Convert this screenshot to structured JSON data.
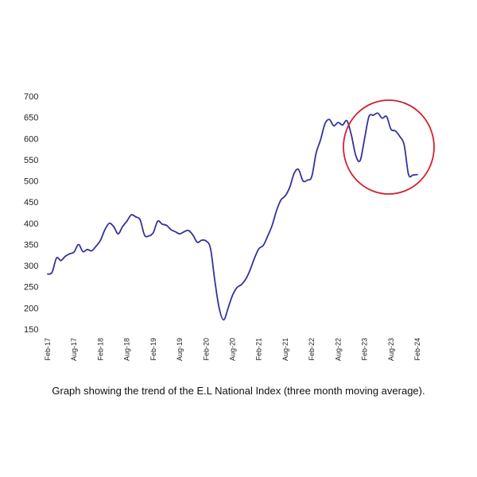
{
  "chart_data": {
    "type": "line",
    "title": "",
    "xlabel": "",
    "ylabel": "",
    "ylim": [
      150,
      700
    ],
    "yticks": [
      150,
      200,
      250,
      300,
      350,
      400,
      450,
      500,
      550,
      600,
      650,
      700
    ],
    "xticks": [
      "Feb-17",
      "Aug-17",
      "Feb-18",
      "Aug-18",
      "Feb-19",
      "Aug-19",
      "Feb-20",
      "Aug-20",
      "Feb-21",
      "Aug-21",
      "Feb-22",
      "Aug-22",
      "Feb-23",
      "Aug-23",
      "Feb-24"
    ],
    "grid": false,
    "line_color": "#33339a",
    "highlight_color": "#d42030",
    "series": [
      {
        "x": [
          "Feb-17",
          "Mar-17",
          "Apr-17",
          "May-17",
          "Jun-17",
          "Jul-17",
          "Aug-17",
          "Sep-17",
          "Oct-17",
          "Nov-17",
          "Dec-17",
          "Jan-18",
          "Feb-18",
          "Mar-18",
          "Apr-18",
          "May-18",
          "Jun-18",
          "Jul-18",
          "Aug-18",
          "Sep-18",
          "Oct-18",
          "Nov-18",
          "Dec-18",
          "Jan-19",
          "Feb-19",
          "Mar-19",
          "Apr-19",
          "May-19",
          "Jun-19",
          "Jul-19",
          "Aug-19",
          "Sep-19",
          "Oct-19",
          "Nov-19",
          "Dec-19",
          "Jan-20",
          "Feb-20",
          "Mar-20",
          "Apr-20",
          "May-20",
          "Jun-20",
          "Jul-20",
          "Aug-20",
          "Sep-20",
          "Oct-20",
          "Nov-20",
          "Dec-20",
          "Jan-21",
          "Feb-21",
          "Mar-21",
          "Apr-21",
          "May-21",
          "Jun-21",
          "Jul-21",
          "Aug-21",
          "Sep-21",
          "Oct-21",
          "Nov-21",
          "Dec-21",
          "Jan-22",
          "Feb-22",
          "Mar-22",
          "Apr-22",
          "May-22",
          "Jun-22",
          "Jul-22",
          "Aug-22",
          "Sep-22",
          "Oct-22",
          "Nov-22",
          "Dec-22",
          "Jan-23",
          "Feb-23",
          "Mar-23",
          "Apr-23",
          "May-23",
          "Jun-23",
          "Jul-23",
          "Aug-23",
          "Sep-23",
          "Oct-23",
          "Nov-23",
          "Dec-23",
          "Jan-24",
          "Feb-24"
        ],
        "values": [
          280,
          284,
          318,
          312,
          322,
          328,
          332,
          350,
          333,
          338,
          335,
          346,
          360,
          385,
          400,
          392,
          375,
          392,
          405,
          420,
          415,
          408,
          372,
          370,
          378,
          405,
          398,
          395,
          385,
          380,
          375,
          380,
          383,
          372,
          355,
          360,
          358,
          340,
          262,
          198,
          172,
          200,
          230,
          248,
          255,
          268,
          290,
          318,
          340,
          348,
          370,
          395,
          430,
          455,
          465,
          485,
          518,
          527,
          500,
          502,
          510,
          566,
          597,
          635,
          645,
          630,
          638,
          632,
          642,
          608,
          560,
          548,
          600,
          652,
          655,
          660,
          648,
          652,
          622,
          618,
          605,
          585,
          515,
          514,
          515
        ]
      }
    ]
  },
  "caption": "Graph showing the trend of the E.L National Index (three month moving average)."
}
